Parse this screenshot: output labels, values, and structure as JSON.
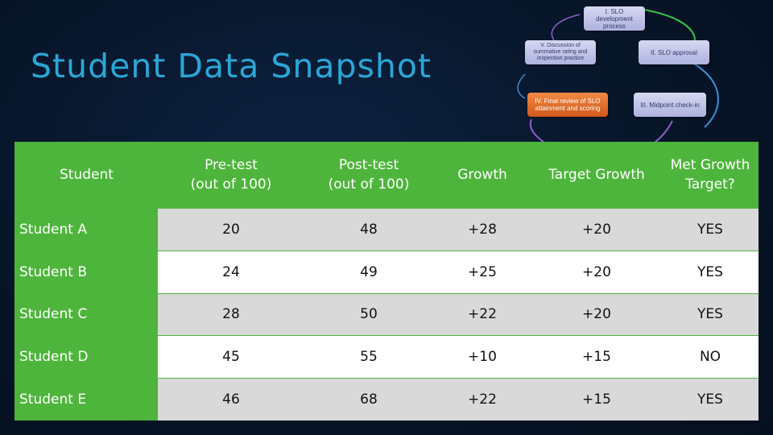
{
  "title": "Student Data Snapshot",
  "cycle": {
    "steps": [
      {
        "label": "I. SLO development process"
      },
      {
        "label": "II. SLO approval"
      },
      {
        "label": "III. Midpoint check-in"
      },
      {
        "label": "IV. Final review of SLO attainment and scoring"
      },
      {
        "label": "V. Discussion of summative rating and inspection practice"
      }
    ]
  },
  "colors": {
    "title": "#2aa7d6",
    "table_green": "#4eb53c",
    "row_gray": "#d9d9d9",
    "arrow_green": "#38c24a",
    "arrow_purple": "#8d5ec9",
    "arrow_blue": "#3b8fd4"
  },
  "table": {
    "headers": [
      "Student",
      "Pre-test\n(out of 100)",
      "Post-test\n(out of 100)",
      "Growth",
      "Target Growth",
      "Met Growth\nTarget?"
    ],
    "rows": [
      {
        "student": "Student A",
        "pre": "20",
        "post": "48",
        "growth": "+28",
        "target": "+20",
        "met": "YES"
      },
      {
        "student": "Student B",
        "pre": "24",
        "post": "49",
        "growth": "+25",
        "target": "+20",
        "met": "YES"
      },
      {
        "student": "Student C",
        "pre": "28",
        "post": "50",
        "growth": "+22",
        "target": "+20",
        "met": "YES"
      },
      {
        "student": "Student D",
        "pre": "45",
        "post": "55",
        "growth": "+10",
        "target": "+15",
        "met": "NO"
      },
      {
        "student": "Student E",
        "pre": "46",
        "post": "68",
        "growth": "+22",
        "target": "+15",
        "met": "YES"
      }
    ]
  }
}
